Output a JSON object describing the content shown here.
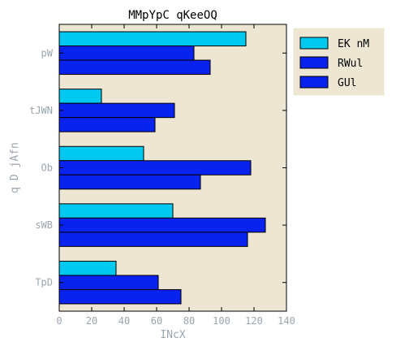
{
  "chart_data": {
    "type": "bar",
    "orientation": "horizontal",
    "title": "MMpYpC qKeeOQ",
    "xlabel": "INcX",
    "ylabel": "q  D jAfn",
    "categories": [
      "pW",
      "tJWN",
      "Ob",
      "sWB",
      "TpD"
    ],
    "series": [
      {
        "name": "EK nM",
        "color": "#00c8ee",
        "values": [
          115,
          26,
          52,
          70,
          35
        ]
      },
      {
        "name": "RWul",
        "color": "#0a22ee",
        "values": [
          83,
          71,
          118,
          127,
          61
        ]
      },
      {
        "name": "GUl",
        "color": "#0a22ee",
        "values": [
          93,
          59,
          87,
          116,
          75
        ]
      }
    ],
    "xlim": [
      0,
      140
    ],
    "xticks": [
      "0",
      "20",
      "40",
      "60",
      "80",
      "100",
      "120",
      "140"
    ],
    "grid": false,
    "legend_position": "outside-right-top",
    "background_color": "#ede6d3",
    "text_color": "#9aa4af"
  }
}
